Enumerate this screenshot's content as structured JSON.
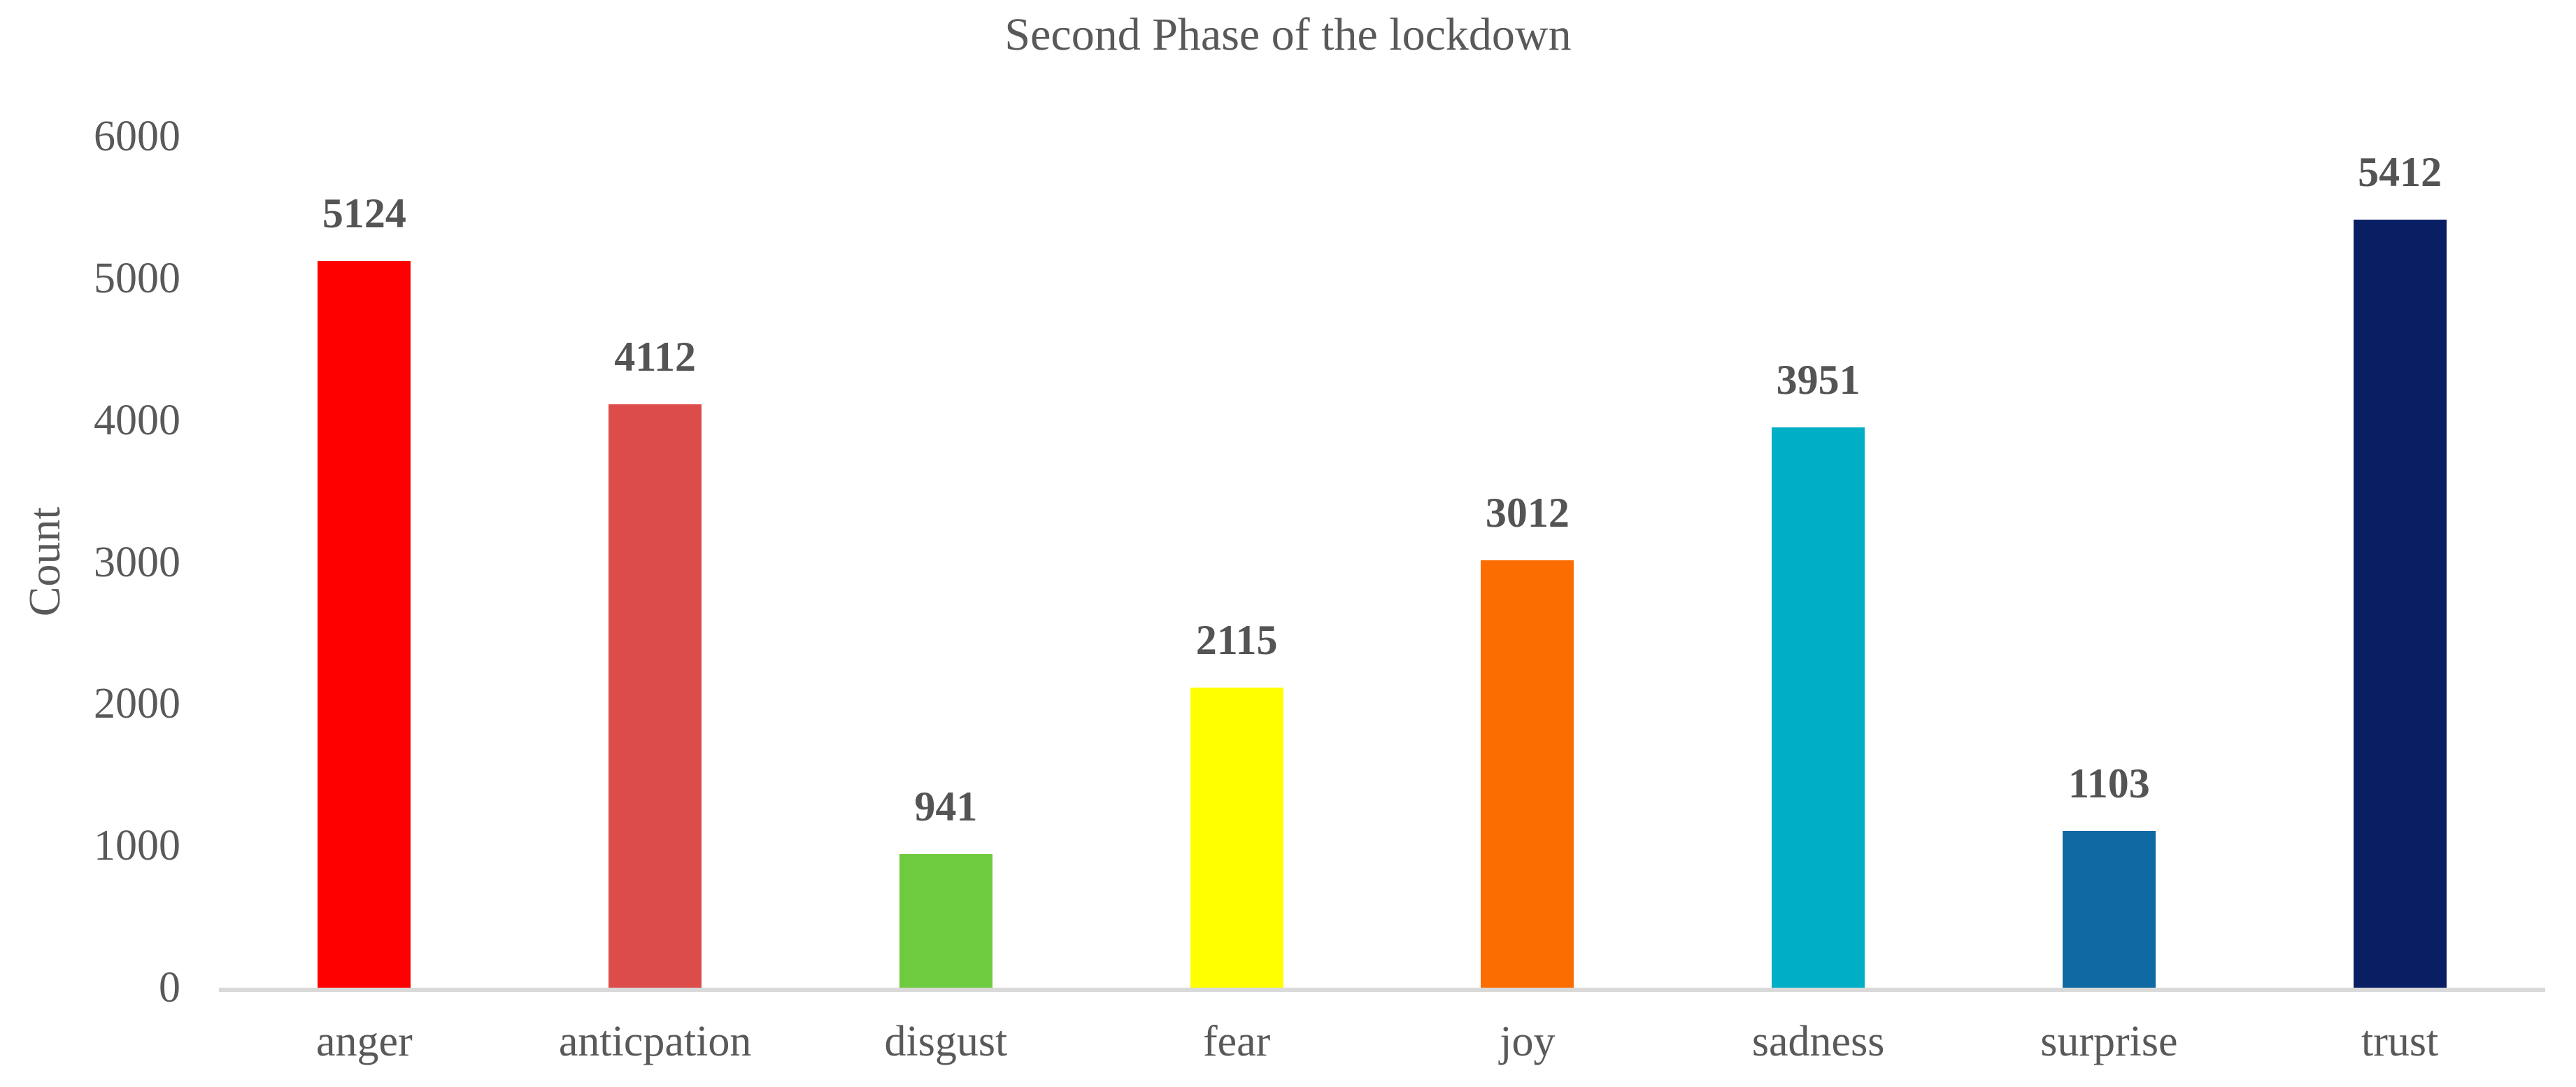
{
  "chart_data": {
    "type": "bar",
    "title": "Second Phase of the lockdown",
    "xlabel": "",
    "ylabel": "Count",
    "categories": [
      "anger",
      "anticpation",
      "disgust",
      "fear",
      "joy",
      "sadness",
      "surprise",
      "trust"
    ],
    "values": [
      5124,
      4112,
      941,
      2115,
      3012,
      3951,
      1103,
      5412
    ],
    "data_labels": [
      "5124",
      "4112",
      "941",
      "2115",
      "3012",
      "3951",
      "1103",
      "5412"
    ],
    "bar_colors": [
      "#FF0000",
      "#DC4C4A",
      "#6ECB3F",
      "#FFFF00",
      "#FB6D00",
      "#00AEC6",
      "#0F69A2",
      "#0A1F63"
    ],
    "ylim": [
      0,
      6000
    ],
    "yticks": [
      0,
      1000,
      2000,
      3000,
      4000,
      5000,
      6000
    ],
    "grid": false,
    "legend_position": "none"
  },
  "styles": {
    "background": "#FFFFFF",
    "text_color": "#595959",
    "data_label_color": "#545454",
    "axis_line_color": "#D9D9D9"
  }
}
